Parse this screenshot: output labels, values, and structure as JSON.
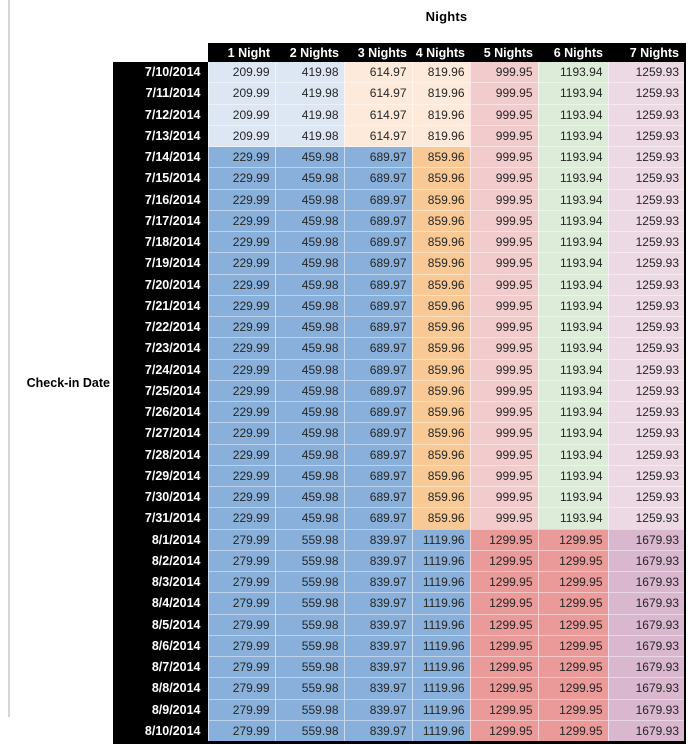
{
  "colors": {
    "header_bg": "#000000",
    "header_text": "#ffffff",
    "value_text": "#262626",
    "pale_blue": "#dce7f3",
    "pale_orange": "#fdeada",
    "pale_pink": "#f2cccc",
    "pale_green": "#dcecd8",
    "pale_mauve": "#edd9e3",
    "medium_blue": "#89b0da",
    "orange": "#f8c994",
    "salmon": "#e99a99",
    "mauve": "#d9b7cf"
  },
  "chart_data": {
    "type": "table",
    "title": "Nights",
    "row_label": "Check-in Date",
    "columns": [
      "1 Night",
      "2 Nights",
      "3 Nights",
      "4 Nights",
      "5 Nights",
      "6 Nights",
      "7 Nights"
    ],
    "bands": {
      "b1": {
        "description": "7/10/2014 - 7/13/2014",
        "cell_colors": [
          "pale_blue",
          "pale_blue",
          "pale_orange",
          "pale_orange",
          "pale_pink",
          "pale_green",
          "pale_mauve"
        ]
      },
      "b2": {
        "description": "7/14/2014 - 7/31/2014",
        "cell_colors": [
          "medium_blue",
          "medium_blue",
          "medium_blue",
          "orange",
          "pale_pink",
          "pale_green",
          "pale_mauve"
        ]
      },
      "b3": {
        "description": "8/1/2014 - 8/10/2014",
        "cell_colors": [
          "medium_blue",
          "medium_blue",
          "medium_blue",
          "medium_blue",
          "salmon",
          "salmon",
          "mauve"
        ]
      }
    },
    "rows": [
      {
        "date": "7/10/2014",
        "band": "b1",
        "values": [
          209.99,
          419.98,
          614.97,
          819.96,
          999.95,
          1193.94,
          1259.93
        ]
      },
      {
        "date": "7/11/2014",
        "band": "b1",
        "values": [
          209.99,
          419.98,
          614.97,
          819.96,
          999.95,
          1193.94,
          1259.93
        ]
      },
      {
        "date": "7/12/2014",
        "band": "b1",
        "values": [
          209.99,
          419.98,
          614.97,
          819.96,
          999.95,
          1193.94,
          1259.93
        ]
      },
      {
        "date": "7/13/2014",
        "band": "b1",
        "values": [
          209.99,
          419.98,
          614.97,
          819.96,
          999.95,
          1193.94,
          1259.93
        ]
      },
      {
        "date": "7/14/2014",
        "band": "b2",
        "values": [
          229.99,
          459.98,
          689.97,
          859.96,
          999.95,
          1193.94,
          1259.93
        ]
      },
      {
        "date": "7/15/2014",
        "band": "b2",
        "values": [
          229.99,
          459.98,
          689.97,
          859.96,
          999.95,
          1193.94,
          1259.93
        ]
      },
      {
        "date": "7/16/2014",
        "band": "b2",
        "values": [
          229.99,
          459.98,
          689.97,
          859.96,
          999.95,
          1193.94,
          1259.93
        ]
      },
      {
        "date": "7/17/2014",
        "band": "b2",
        "values": [
          229.99,
          459.98,
          689.97,
          859.96,
          999.95,
          1193.94,
          1259.93
        ]
      },
      {
        "date": "7/18/2014",
        "band": "b2",
        "values": [
          229.99,
          459.98,
          689.97,
          859.96,
          999.95,
          1193.94,
          1259.93
        ]
      },
      {
        "date": "7/19/2014",
        "band": "b2",
        "values": [
          229.99,
          459.98,
          689.97,
          859.96,
          999.95,
          1193.94,
          1259.93
        ]
      },
      {
        "date": "7/20/2014",
        "band": "b2",
        "values": [
          229.99,
          459.98,
          689.97,
          859.96,
          999.95,
          1193.94,
          1259.93
        ]
      },
      {
        "date": "7/21/2014",
        "band": "b2",
        "values": [
          229.99,
          459.98,
          689.97,
          859.96,
          999.95,
          1193.94,
          1259.93
        ]
      },
      {
        "date": "7/22/2014",
        "band": "b2",
        "values": [
          229.99,
          459.98,
          689.97,
          859.96,
          999.95,
          1193.94,
          1259.93
        ]
      },
      {
        "date": "7/23/2014",
        "band": "b2",
        "values": [
          229.99,
          459.98,
          689.97,
          859.96,
          999.95,
          1193.94,
          1259.93
        ]
      },
      {
        "date": "7/24/2014",
        "band": "b2",
        "values": [
          229.99,
          459.98,
          689.97,
          859.96,
          999.95,
          1193.94,
          1259.93
        ]
      },
      {
        "date": "7/25/2014",
        "band": "b2",
        "values": [
          229.99,
          459.98,
          689.97,
          859.96,
          999.95,
          1193.94,
          1259.93
        ]
      },
      {
        "date": "7/26/2014",
        "band": "b2",
        "values": [
          229.99,
          459.98,
          689.97,
          859.96,
          999.95,
          1193.94,
          1259.93
        ]
      },
      {
        "date": "7/27/2014",
        "band": "b2",
        "values": [
          229.99,
          459.98,
          689.97,
          859.96,
          999.95,
          1193.94,
          1259.93
        ]
      },
      {
        "date": "7/28/2014",
        "band": "b2",
        "values": [
          229.99,
          459.98,
          689.97,
          859.96,
          999.95,
          1193.94,
          1259.93
        ]
      },
      {
        "date": "7/29/2014",
        "band": "b2",
        "values": [
          229.99,
          459.98,
          689.97,
          859.96,
          999.95,
          1193.94,
          1259.93
        ]
      },
      {
        "date": "7/30/2014",
        "band": "b2",
        "values": [
          229.99,
          459.98,
          689.97,
          859.96,
          999.95,
          1193.94,
          1259.93
        ]
      },
      {
        "date": "7/31/2014",
        "band": "b2",
        "values": [
          229.99,
          459.98,
          689.97,
          859.96,
          999.95,
          1193.94,
          1259.93
        ]
      },
      {
        "date": "8/1/2014",
        "band": "b3",
        "values": [
          279.99,
          559.98,
          839.97,
          1119.96,
          1299.95,
          1299.95,
          1679.93
        ]
      },
      {
        "date": "8/2/2014",
        "band": "b3",
        "values": [
          279.99,
          559.98,
          839.97,
          1119.96,
          1299.95,
          1299.95,
          1679.93
        ]
      },
      {
        "date": "8/3/2014",
        "band": "b3",
        "values": [
          279.99,
          559.98,
          839.97,
          1119.96,
          1299.95,
          1299.95,
          1679.93
        ]
      },
      {
        "date": "8/4/2014",
        "band": "b3",
        "values": [
          279.99,
          559.98,
          839.97,
          1119.96,
          1299.95,
          1299.95,
          1679.93
        ]
      },
      {
        "date": "8/5/2014",
        "band": "b3",
        "values": [
          279.99,
          559.98,
          839.97,
          1119.96,
          1299.95,
          1299.95,
          1679.93
        ]
      },
      {
        "date": "8/6/2014",
        "band": "b3",
        "values": [
          279.99,
          559.98,
          839.97,
          1119.96,
          1299.95,
          1299.95,
          1679.93
        ]
      },
      {
        "date": "8/7/2014",
        "band": "b3",
        "values": [
          279.99,
          559.98,
          839.97,
          1119.96,
          1299.95,
          1299.95,
          1679.93
        ]
      },
      {
        "date": "8/8/2014",
        "band": "b3",
        "values": [
          279.99,
          559.98,
          839.97,
          1119.96,
          1299.95,
          1299.95,
          1679.93
        ]
      },
      {
        "date": "8/9/2014",
        "band": "b3",
        "values": [
          279.99,
          559.98,
          839.97,
          1119.96,
          1299.95,
          1299.95,
          1679.93
        ]
      },
      {
        "date": "8/10/2014",
        "band": "b3",
        "values": [
          279.99,
          559.98,
          839.97,
          1119.96,
          1299.95,
          1299.95,
          1679.93
        ]
      }
    ]
  }
}
